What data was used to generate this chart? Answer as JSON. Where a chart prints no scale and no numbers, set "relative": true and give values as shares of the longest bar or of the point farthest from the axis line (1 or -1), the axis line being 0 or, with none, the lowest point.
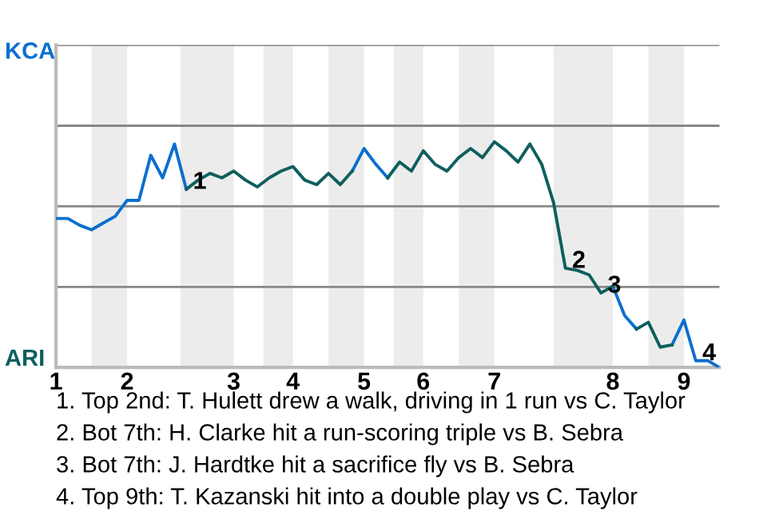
{
  "chart_data": {
    "type": "line",
    "relative": true,
    "categories": [
      "1",
      null,
      null,
      null,
      null,
      null,
      "2",
      null,
      null,
      null,
      null,
      null,
      null,
      null,
      null,
      "3",
      null,
      null,
      null,
      null,
      "4",
      null,
      null,
      null,
      null,
      null,
      "5",
      null,
      null,
      null,
      null,
      "6",
      null,
      null,
      null,
      null,
      null,
      "7",
      null,
      null,
      null,
      null,
      null,
      null,
      null,
      null,
      null,
      "8",
      null,
      null,
      null,
      null,
      null,
      "9",
      null,
      null,
      null
    ],
    "series": [
      {
        "color": "#0b6fcf",
        "values": [
          0.66,
          0.66,
          0.63,
          0.61,
          0.64,
          0.67,
          0.74,
          0.74,
          0.94,
          0.84,
          0.99,
          0.79,
          null,
          null,
          null,
          null,
          null,
          null,
          null,
          null,
          null,
          null,
          null,
          null,
          null,
          0.87,
          0.97,
          0.9,
          0.84,
          null,
          null,
          null,
          null,
          null,
          null,
          null,
          null,
          null,
          null,
          null,
          null,
          null,
          null,
          null,
          null,
          null,
          null,
          0.36,
          0.23,
          0.17,
          null,
          null,
          0.1,
          0.21,
          0.03,
          0.03,
          0
        ]
      },
      {
        "color": "#0e5f5e",
        "values": [
          null,
          null,
          null,
          null,
          null,
          null,
          null,
          null,
          null,
          null,
          null,
          0.79,
          0.83,
          0.86,
          0.84,
          0.87,
          0.83,
          0.8,
          0.84,
          0.87,
          0.89,
          0.83,
          0.81,
          0.86,
          0.81,
          0.87,
          null,
          null,
          0.84,
          0.91,
          0.87,
          0.96,
          0.9,
          0.87,
          0.93,
          0.97,
          0.93,
          1,
          0.96,
          0.91,
          0.99,
          0.9,
          0.73,
          0.44,
          0.43,
          0.41,
          0.33,
          0.36,
          null,
          0.17,
          0.2,
          0.09,
          0.1,
          null,
          null,
          null,
          null
        ]
      }
    ],
    "marker": "none",
    "ref_lines": [
      {
        "axis": "y",
        "value": 0.357,
        "color": "#888888"
      },
      {
        "axis": "y",
        "value": 0.714,
        "color": "#888888"
      },
      {
        "axis": "y",
        "value": 1.071,
        "color": "#888888"
      },
      {
        "axis": "y",
        "value": 1.429,
        "color": "#888888"
      }
    ],
    "annotations": [
      "KCA",
      "ARI",
      {
        "text": "1",
        "y": 0.79
      },
      {
        "text": "2",
        "y": 0.44
      },
      {
        "text": "3",
        "y": 0.33
      },
      {
        "text": "4",
        "y": 0.03
      },
      "1. Top 2nd: T. Hulett drew a walk, driving in 1 run vs C. Taylor",
      "2. Bot 7th: H. Clarke hit a run-scoring triple vs B. Sebra",
      "3. Bot 7th: J. Hardtke hit a sacrifice fly vs B. Sebra",
      "4. Top 9th: T. Kazanski hit into a double play vs C. Taylor"
    ]
  }
}
